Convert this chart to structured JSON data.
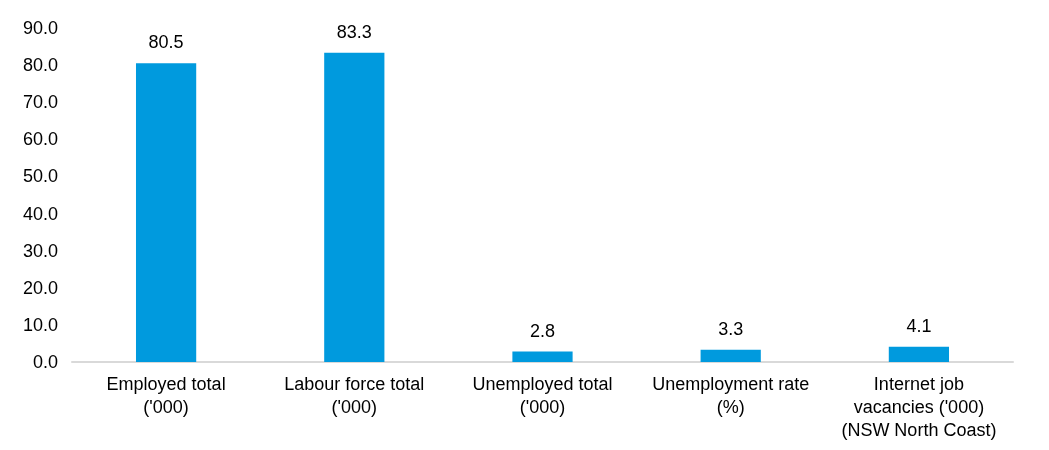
{
  "chart_data": {
    "type": "bar",
    "categories": [
      "Employed total\n('000)",
      "Labour force total\n('000)",
      "Unemployed total\n('000)",
      "Unemployment rate\n(%)",
      "Internet job\nvacancies ('000)\n(NSW North Coast)"
    ],
    "values": [
      80.5,
      83.3,
      2.8,
      3.3,
      4.1
    ],
    "color": "#009ade",
    "ylim": [
      0,
      90
    ],
    "yticks": [
      {
        "value": 0,
        "label": "0.0"
      },
      {
        "value": 10,
        "label": "10.0"
      },
      {
        "value": 20,
        "label": "20.0"
      },
      {
        "value": 30,
        "label": "30.0"
      },
      {
        "value": 40,
        "label": "40.0"
      },
      {
        "value": 50,
        "label": "50.0"
      },
      {
        "value": 60,
        "label": "60.0"
      },
      {
        "value": 70,
        "label": "70.0"
      },
      {
        "value": 80,
        "label": "80.0"
      },
      {
        "value": 90,
        "label": "90.0"
      }
    ],
    "grid": false,
    "data_labels": true
  }
}
